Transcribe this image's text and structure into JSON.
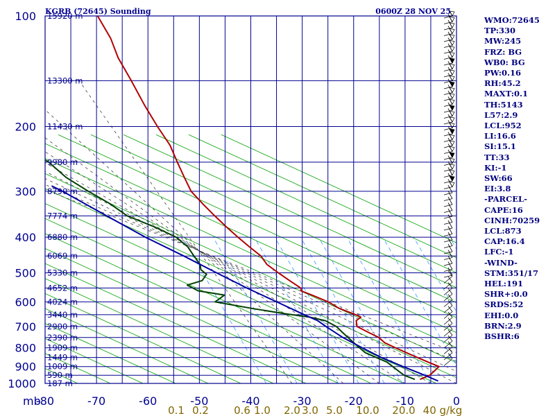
{
  "chart_data": {
    "type": "line",
    "title": "KGRB (72645) Sounding",
    "datetime": "0600Z 28 NOV 25",
    "xlabel": "",
    "ylabel": "mb",
    "x_range": [
      -80,
      0
    ],
    "pressure_range": [
      1000,
      100
    ],
    "x_ticks": [
      "-80",
      "-70",
      "-60",
      "-50",
      "-40",
      "-30",
      "-20",
      "-10",
      "0"
    ],
    "pressure_ticks": [
      "100",
      "200",
      "300",
      "400",
      "500",
      "600",
      "700",
      "800",
      "900",
      "1000"
    ],
    "heights": [
      {
        "p": 100,
        "label": "15920 m"
      },
      {
        "p": 150,
        "label": "13300 m"
      },
      {
        "p": 200,
        "label": "11430 m"
      },
      {
        "p": 250,
        "label": "9980 m"
      },
      {
        "p": 300,
        "label": "8790 m"
      },
      {
        "p": 350,
        "label": "7774 m"
      },
      {
        "p": 400,
        "label": "6880 m"
      },
      {
        "p": 450,
        "label": "6069 m"
      },
      {
        "p": 500,
        "label": "5330 m"
      },
      {
        "p": 550,
        "label": "4652 m"
      },
      {
        "p": 600,
        "label": "4024 m"
      },
      {
        "p": 650,
        "label": "3440 m"
      },
      {
        "p": 700,
        "label": "2900 m"
      },
      {
        "p": 750,
        "label": "2390 m"
      },
      {
        "p": 800,
        "label": "1909 m"
      },
      {
        "p": 850,
        "label": "1449 m"
      },
      {
        "p": 900,
        "label": "1009 m"
      },
      {
        "p": 950,
        "label": "590 m"
      },
      {
        "p": 1000,
        "label": "187 m"
      }
    ],
    "mixing_ratio_labels": [
      "0.1",
      "0.2",
      "0.6",
      "1.0",
      "2.0",
      "3.0",
      "5.0",
      "10.0",
      "20.0",
      "40 g/kg"
    ],
    "series": [
      {
        "role": "temperature",
        "values": [
          [
            975,
            -7
          ],
          [
            950,
            -5
          ],
          [
            925,
            -4
          ],
          [
            900,
            -3
          ],
          [
            875,
            -5
          ],
          [
            850,
            -7
          ],
          [
            825,
            -9
          ],
          [
            800,
            -11
          ],
          [
            775,
            -13
          ],
          [
            750,
            -14
          ],
          [
            725,
            -16
          ],
          [
            700,
            -18
          ],
          [
            675,
            -18
          ],
          [
            660,
            -17
          ],
          [
            650,
            -18
          ],
          [
            625,
            -21
          ],
          [
            600,
            -23
          ],
          [
            575,
            -26
          ],
          [
            560,
            -28
          ],
          [
            550,
            -28
          ],
          [
            525,
            -30
          ],
          [
            500,
            -32
          ],
          [
            475,
            -34
          ],
          [
            450,
            -35
          ],
          [
            425,
            -37
          ],
          [
            400,
            -39
          ],
          [
            375,
            -41
          ],
          [
            350,
            -43
          ],
          [
            325,
            -45
          ],
          [
            300,
            -47
          ],
          [
            275,
            -48
          ],
          [
            250,
            -49
          ],
          [
            225,
            -50
          ],
          [
            200,
            -52
          ],
          [
            175,
            -54
          ],
          [
            150,
            -56
          ],
          [
            130,
            -58
          ],
          [
            115,
            -59
          ],
          [
            100,
            -61
          ]
        ]
      },
      {
        "role": "dewpoint",
        "values": [
          [
            975,
            -8
          ],
          [
            950,
            -10
          ],
          [
            925,
            -11
          ],
          [
            900,
            -12
          ],
          [
            875,
            -13
          ],
          [
            850,
            -15
          ],
          [
            825,
            -17
          ],
          [
            800,
            -18
          ],
          [
            775,
            -19
          ],
          [
            750,
            -20
          ],
          [
            725,
            -21
          ],
          [
            700,
            -22
          ],
          [
            675,
            -24
          ],
          [
            660,
            -27
          ],
          [
            645,
            -32
          ],
          [
            625,
            -38
          ],
          [
            600,
            -45
          ],
          [
            575,
            -43
          ],
          [
            560,
            -48
          ],
          [
            540,
            -50
          ],
          [
            525,
            -47
          ],
          [
            505,
            -46
          ],
          [
            490,
            -47
          ],
          [
            475,
            -47
          ],
          [
            450,
            -48
          ],
          [
            425,
            -49
          ],
          [
            400,
            -51
          ],
          [
            375,
            -55
          ],
          [
            350,
            -60
          ],
          [
            325,
            -63
          ],
          [
            300,
            -67
          ],
          [
            275,
            -71
          ],
          [
            250,
            -74
          ],
          [
            225,
            -79
          ],
          [
            200,
            -83
          ],
          [
            185,
            -86
          ]
        ]
      },
      {
        "role": "parcel",
        "values": [
          [
            985,
            -3.5
          ],
          [
            950,
            -6
          ],
          [
            900,
            -10
          ],
          [
            850,
            -14
          ],
          [
            800,
            -17.5
          ],
          [
            750,
            -21
          ],
          [
            700,
            -24
          ],
          [
            675,
            -25.5
          ],
          [
            650,
            -28
          ],
          [
            600,
            -33
          ],
          [
            550,
            -38.5
          ],
          [
            500,
            -44
          ],
          [
            450,
            -50
          ],
          [
            400,
            -57
          ],
          [
            350,
            -64
          ],
          [
            300,
            -72
          ],
          [
            290,
            -74
          ]
        ]
      }
    ],
    "grid": true,
    "colors": {
      "temperature": "#b00000",
      "dewpoint": "#004000",
      "parcel": "#0000a0",
      "frame": "#000090",
      "dry_adiabat": "#00a000",
      "moist_adiabat": "#404040",
      "mixing_ratio": "#3399ff",
      "mixing_label": "#806600",
      "wind_barb": "#000000"
    }
  },
  "indices": [
    "WMO:72645",
    "TP:330",
    "MW:245",
    "FRZ: BG",
    "WB0: BG",
    "PW:0.16",
    "RH:45.2",
    "MAXT:0.1",
    "TH:5143",
    "L57:2.9",
    "LCL:952",
    "LI:16.6",
    "SI:15.1",
    "TT:33",
    "KI:-1",
    "SW:66",
    "EI:3.8",
    "-PARCEL-",
    "CAPE:16",
    "CINH:70259",
    "LCL:873",
    "CAP:16.4",
    "LFC:-1",
    "-WIND-",
    "STM:351/17",
    "HEL:191",
    "SHR+:0.0",
    "SRDS:52",
    "EHI:0.0",
    "BRN:2.9",
    "BSHR:6"
  ],
  "wind_icon": "wind-barb-icon"
}
